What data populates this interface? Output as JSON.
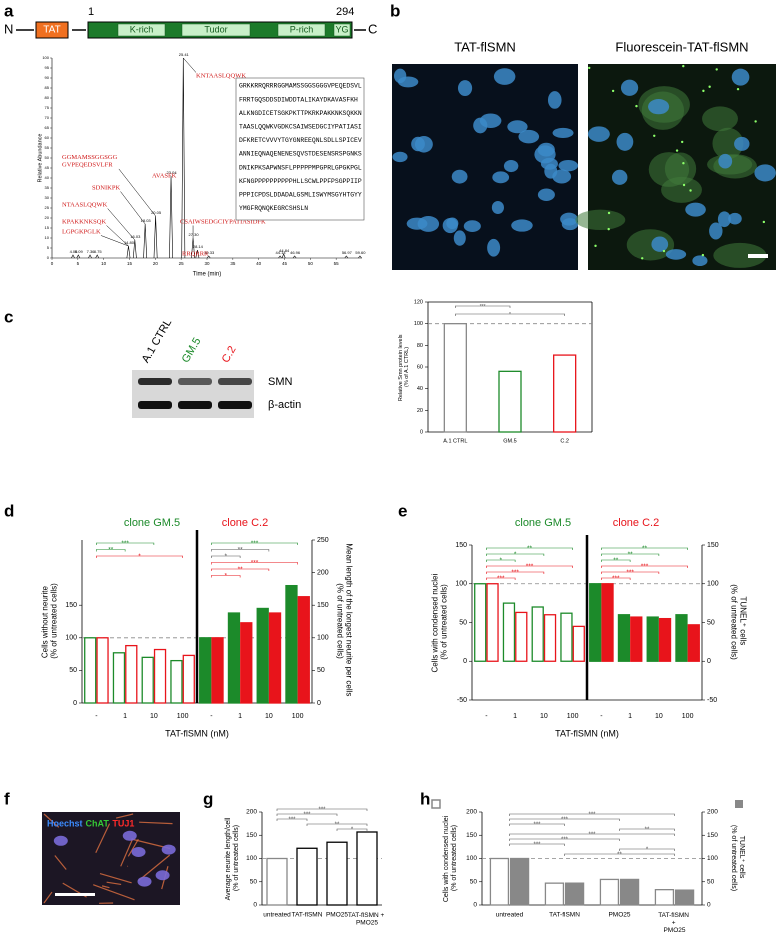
{
  "panel_labels": [
    "a",
    "b",
    "c",
    "d",
    "e",
    "f",
    "g",
    "h"
  ],
  "domain": {
    "n": "N",
    "c": "C",
    "start": 1,
    "end": 294,
    "tat": "TAT",
    "regions": [
      "K-rich",
      "Tudor",
      "P-rich",
      "YG"
    ]
  },
  "sequence": [
    "GRKKRRQRRRGGMAMSSGGSGGGVPEQEDSVL",
    "FRRTGQSDDSDIWDDTALIKAYDKAVASFKH",
    "ALKNGDICETSGKPKTTPKRKPAKKNKSQKKN",
    "TAASLQQWKVGDKCSAIWSEDGCIYPATIASI",
    "DFKRETCVVVYTGYGNREEQNLSDLLSPICEV",
    "ANNIEQNAQENENESQVSTDESENSRSPGNKS",
    "DNIKPKSAPWNSFLPPPPPMPGPRLGPGKPGL",
    "KFNGPPPPPPPPPPHLLSCWLPPFPSGPPIIP",
    "PPPICPDSLDDADALGSMLISWYMSGYHTGYY",
    "YMGFRQNQKEGRCSHSLN"
  ],
  "images": {
    "titles": [
      "TAT-flSMN",
      "Fluorescein-TAT-flSMN"
    ]
  },
  "blot": {
    "lanes": [
      {
        "label": "A.1 CTRL",
        "color": "#000000"
      },
      {
        "label": "GM.5",
        "color": "#1c8a2a"
      },
      {
        "label": "C.2",
        "color": "#e8141b"
      }
    ],
    "bands": [
      "SMN",
      "β-actin"
    ]
  },
  "stain": [
    {
      "label": "Hoechst",
      "color": "#3b8bff"
    },
    {
      "label": "ChAT",
      "color": "#35c835"
    },
    {
      "label": "TUJ1",
      "color": "#ff2a2a"
    }
  ],
  "chart_data": [
    {
      "type": "line",
      "xlabel": "Time (min)",
      "ylabel": "Relative Abundance",
      "xlim": [
        0,
        60
      ],
      "xticks": [
        0,
        5,
        10,
        15,
        20,
        25,
        30,
        35,
        40,
        45,
        50,
        55
      ],
      "ylim": [
        0,
        100
      ],
      "yticks": [
        0,
        5,
        10,
        15,
        20,
        25,
        30,
        35,
        40,
        45,
        50,
        55,
        60,
        65,
        70,
        75,
        80,
        85,
        90,
        95,
        100
      ],
      "peaks": [
        {
          "time": 4.06,
          "value": 1.5
        },
        {
          "time": 5.09,
          "value": 1.5
        },
        {
          "time": 7.36,
          "value": 1.5
        },
        {
          "time": 8.75,
          "value": 1.5
        },
        {
          "time": 14.8,
          "label": "14.80",
          "value": 6
        },
        {
          "time": 16.03,
          "value": 9
        },
        {
          "time": 18.03,
          "value": 17
        },
        {
          "time": 20.05,
          "value": 21
        },
        {
          "time": 23.04,
          "value": 41
        },
        {
          "time": 25.41,
          "value": 100
        },
        {
          "time": 27.3,
          "label": "27.30",
          "value": 10
        },
        {
          "time": 28.14,
          "value": 4
        },
        {
          "time": 30.33,
          "value": 1
        },
        {
          "time": 44.14,
          "value": 1
        },
        {
          "time": 44.84,
          "value": 2
        },
        {
          "time": 46.96,
          "value": 1
        },
        {
          "time": 56.97,
          "value": 1
        },
        {
          "time": 59.6,
          "label": "59.60",
          "value": 1
        }
      ],
      "annotations": [
        {
          "text": "KNTAASLQQWK",
          "peak": 9
        },
        {
          "text": "GGMAMSSGGSGG\nGVPEQEDSVLFR",
          "peak": 7
        },
        {
          "text": "SDNIKPK",
          "peak": 6
        },
        {
          "text": "AVASFK",
          "peak": 8
        },
        {
          "text": "NTAASLQQWK",
          "peak": 5
        },
        {
          "text": "KPAKKNKSQK",
          "peak": 4
        },
        {
          "text": "LGPGKPGLK",
          "peak": 4
        },
        {
          "text": "CSAIWSEDGCIYPATIASIDFK",
          "peak": 10
        },
        {
          "text": "RRQRRR",
          "peak": 11
        }
      ]
    },
    {
      "type": "bar",
      "ylabel": "Relative Smn protein levels\n(% of A.1 CTRL)",
      "categories": [
        "A.1 CTRL",
        "GM.5",
        "C.2"
      ],
      "series": [
        {
          "colors": [
            "#888888",
            "#1c8a2a",
            "#e8141b"
          ],
          "fill": false,
          "values": [
            100,
            56,
            71
          ]
        }
      ],
      "ylim": [
        0,
        120
      ],
      "yticks": [
        0,
        20,
        40,
        60,
        80,
        100,
        120
      ],
      "reference": 100,
      "significance": [
        {
          "label": "***",
          "from": 0,
          "to": 1
        },
        {
          "label": "*",
          "from": 0,
          "to": 2
        }
      ]
    },
    {
      "type": "bar",
      "ylabel": "Cells without neurite\n(% of untreated cells)",
      "y2label": "Mean length of the longest neurite per cells\n(% of untreated cells)",
      "xlabel": "TAT-flSMN (nM)",
      "categories": [
        "-",
        "1",
        "10",
        "100",
        "-",
        "1",
        "10",
        "100"
      ],
      "series": [
        {
          "name": "clone GM.5",
          "color": "#1c8a2a",
          "fill": false,
          "values": [
            100,
            77,
            70,
            65,
            null,
            null,
            null,
            null
          ]
        },
        {
          "name": "clone C.2",
          "color": "#e8141b",
          "fill": false,
          "values": [
            100,
            88,
            82,
            73,
            null,
            null,
            null,
            null
          ]
        },
        {
          "color": "#1c8a2a",
          "fill": true,
          "axis": "y2",
          "values": [
            null,
            null,
            null,
            null,
            100,
            138,
            145,
            180
          ]
        },
        {
          "color": "#e8141b",
          "fill": true,
          "axis": "y2",
          "values": [
            null,
            null,
            null,
            null,
            100,
            123,
            138,
            163
          ]
        }
      ],
      "ylim": [
        0,
        250
      ],
      "yticks": [
        0,
        50,
        100,
        150
      ],
      "y2lim": [
        0,
        250
      ],
      "y2ticks": [
        0,
        50,
        100,
        150,
        200,
        250
      ],
      "reference": 100,
      "divider": 3,
      "significance": [
        {
          "label": "***",
          "from": 0,
          "to": 2,
          "color": "#1c8a2a"
        },
        {
          "label": "**",
          "from": 0,
          "to": 1,
          "color": "#1c8a2a"
        },
        {
          "label": "*",
          "from": 0,
          "to": 3,
          "color": "#e8141b"
        },
        {
          "label": "***",
          "from": 4,
          "to": 7,
          "color": "#1c8a2a"
        },
        {
          "label": "**",
          "from": 4,
          "to": 6,
          "color": "#555555"
        },
        {
          "label": "*",
          "from": 4,
          "to": 5,
          "color": "#555555"
        },
        {
          "label": "***",
          "from": 4,
          "to": 7,
          "color": "#e8141b"
        },
        {
          "label": "**",
          "from": 4,
          "to": 6,
          "color": "#e8141b"
        },
        {
          "label": "*",
          "from": 4,
          "to": 5,
          "color": "#e8141b"
        }
      ]
    },
    {
      "type": "bar",
      "ylabel": "Cells with condensed nuclei\n(% of untreated cells)",
      "y2label": "TUNEL⁺ cells\n(% of untreated cells)",
      "xlabel": "TAT-flSMN (nM)",
      "categories": [
        "-",
        "1",
        "10",
        "100",
        "-",
        "1",
        "10",
        "100"
      ],
      "series": [
        {
          "name": "clone GM.5",
          "color": "#1c8a2a",
          "fill": false,
          "values": [
            100,
            75,
            70,
            62,
            null,
            null,
            null,
            null
          ]
        },
        {
          "name": "clone C.2",
          "color": "#e8141b",
          "fill": false,
          "values": [
            100,
            63,
            60,
            45,
            null,
            null,
            null,
            null
          ]
        },
        {
          "color": "#1c8a2a",
          "fill": true,
          "axis": "y2",
          "values": [
            null,
            null,
            null,
            null,
            100,
            60,
            57,
            60
          ]
        },
        {
          "color": "#e8141b",
          "fill": true,
          "axis": "y2",
          "values": [
            null,
            null,
            null,
            null,
            100,
            57,
            55,
            47
          ]
        }
      ],
      "ylim": [
        -50,
        150
      ],
      "yticks": [
        -50,
        0,
        50,
        100,
        150
      ],
      "y2lim": [
        -50,
        150
      ],
      "y2ticks": [
        -50,
        0,
        50,
        100,
        150
      ],
      "reference": 100,
      "divider": 3,
      "significance": [
        {
          "label": "**",
          "from": 0,
          "to": 3,
          "color": "#1c8a2a"
        },
        {
          "label": "*",
          "from": 0,
          "to": 2,
          "color": "#1c8a2a"
        },
        {
          "label": "*",
          "from": 0,
          "to": 1,
          "color": "#1c8a2a"
        },
        {
          "label": "***",
          "from": 0,
          "to": 3,
          "color": "#e8141b"
        },
        {
          "label": "***",
          "from": 0,
          "to": 2,
          "color": "#e8141b"
        },
        {
          "label": "***",
          "from": 0,
          "to": 1,
          "color": "#e8141b"
        },
        {
          "label": "**",
          "from": 4,
          "to": 7,
          "color": "#1c8a2a"
        },
        {
          "label": "**",
          "from": 4,
          "to": 6,
          "color": "#1c8a2a"
        },
        {
          "label": "**",
          "from": 4,
          "to": 5,
          "color": "#1c8a2a"
        },
        {
          "label": "***",
          "from": 4,
          "to": 7,
          "color": "#e8141b"
        },
        {
          "label": "***",
          "from": 4,
          "to": 6,
          "color": "#e8141b"
        },
        {
          "label": "***",
          "from": 4,
          "to": 5,
          "color": "#e8141b"
        }
      ]
    },
    {
      "type": "bar",
      "ylabel": "Average neurite length/cell\n(% of untreated cells)",
      "categories": [
        "untreated",
        "TAT-flSMN",
        "PMO25",
        "TAT-flSMN +\nPMO25"
      ],
      "series": [
        {
          "colors": [
            "#888888",
            "#000000",
            "#000000",
            "#000000"
          ],
          "fill": false,
          "values": [
            100,
            122,
            135,
            157
          ]
        }
      ],
      "ylim": [
        0,
        200
      ],
      "yticks": [
        0,
        50,
        100,
        150,
        200
      ],
      "reference": 100,
      "significance": [
        {
          "label": "***",
          "from": 0,
          "to": 3
        },
        {
          "label": "***",
          "from": 0,
          "to": 2
        },
        {
          "label": "***",
          "from": 0,
          "to": 1
        },
        {
          "label": "**",
          "from": 1,
          "to": 3
        },
        {
          "label": "*",
          "from": 2,
          "to": 3
        }
      ]
    },
    {
      "type": "bar",
      "ylabel": "Cells with condensed nuclei\n(% of untreated cells)",
      "y2label": "TUNEL⁺ cells\n(% of untreated cells)",
      "categories": [
        "untreated",
        "TAT-flSMN",
        "PMO25",
        "TAT-flSMN\n+\nPMO25"
      ],
      "series": [
        {
          "color": "#888888",
          "fill": false,
          "values": [
            100,
            47,
            55,
            33
          ]
        },
        {
          "color": "#888888",
          "fill": true,
          "axis": "y2",
          "values": [
            100,
            47,
            55,
            32
          ]
        }
      ],
      "ylim": [
        0,
        200
      ],
      "yticks": [
        0,
        50,
        100,
        150,
        200
      ],
      "y2lim": [
        0,
        200
      ],
      "y2ticks": [
        0,
        50,
        100,
        150,
        200
      ],
      "reference": 100,
      "significance": [
        {
          "label": "***",
          "from": 0,
          "to": 3
        },
        {
          "label": "***",
          "from": 0,
          "to": 2
        },
        {
          "label": "***",
          "from": 0,
          "to": 1
        },
        {
          "label": "**",
          "from": 2,
          "to": 3
        },
        {
          "label": "***",
          "from": 0,
          "to": 3
        },
        {
          "label": "***",
          "from": 0,
          "to": 2
        },
        {
          "label": "***",
          "from": 0,
          "to": 1
        },
        {
          "label": "*",
          "from": 2,
          "to": 3
        },
        {
          "label": "**",
          "from": 1,
          "to": 3
        }
      ]
    }
  ]
}
